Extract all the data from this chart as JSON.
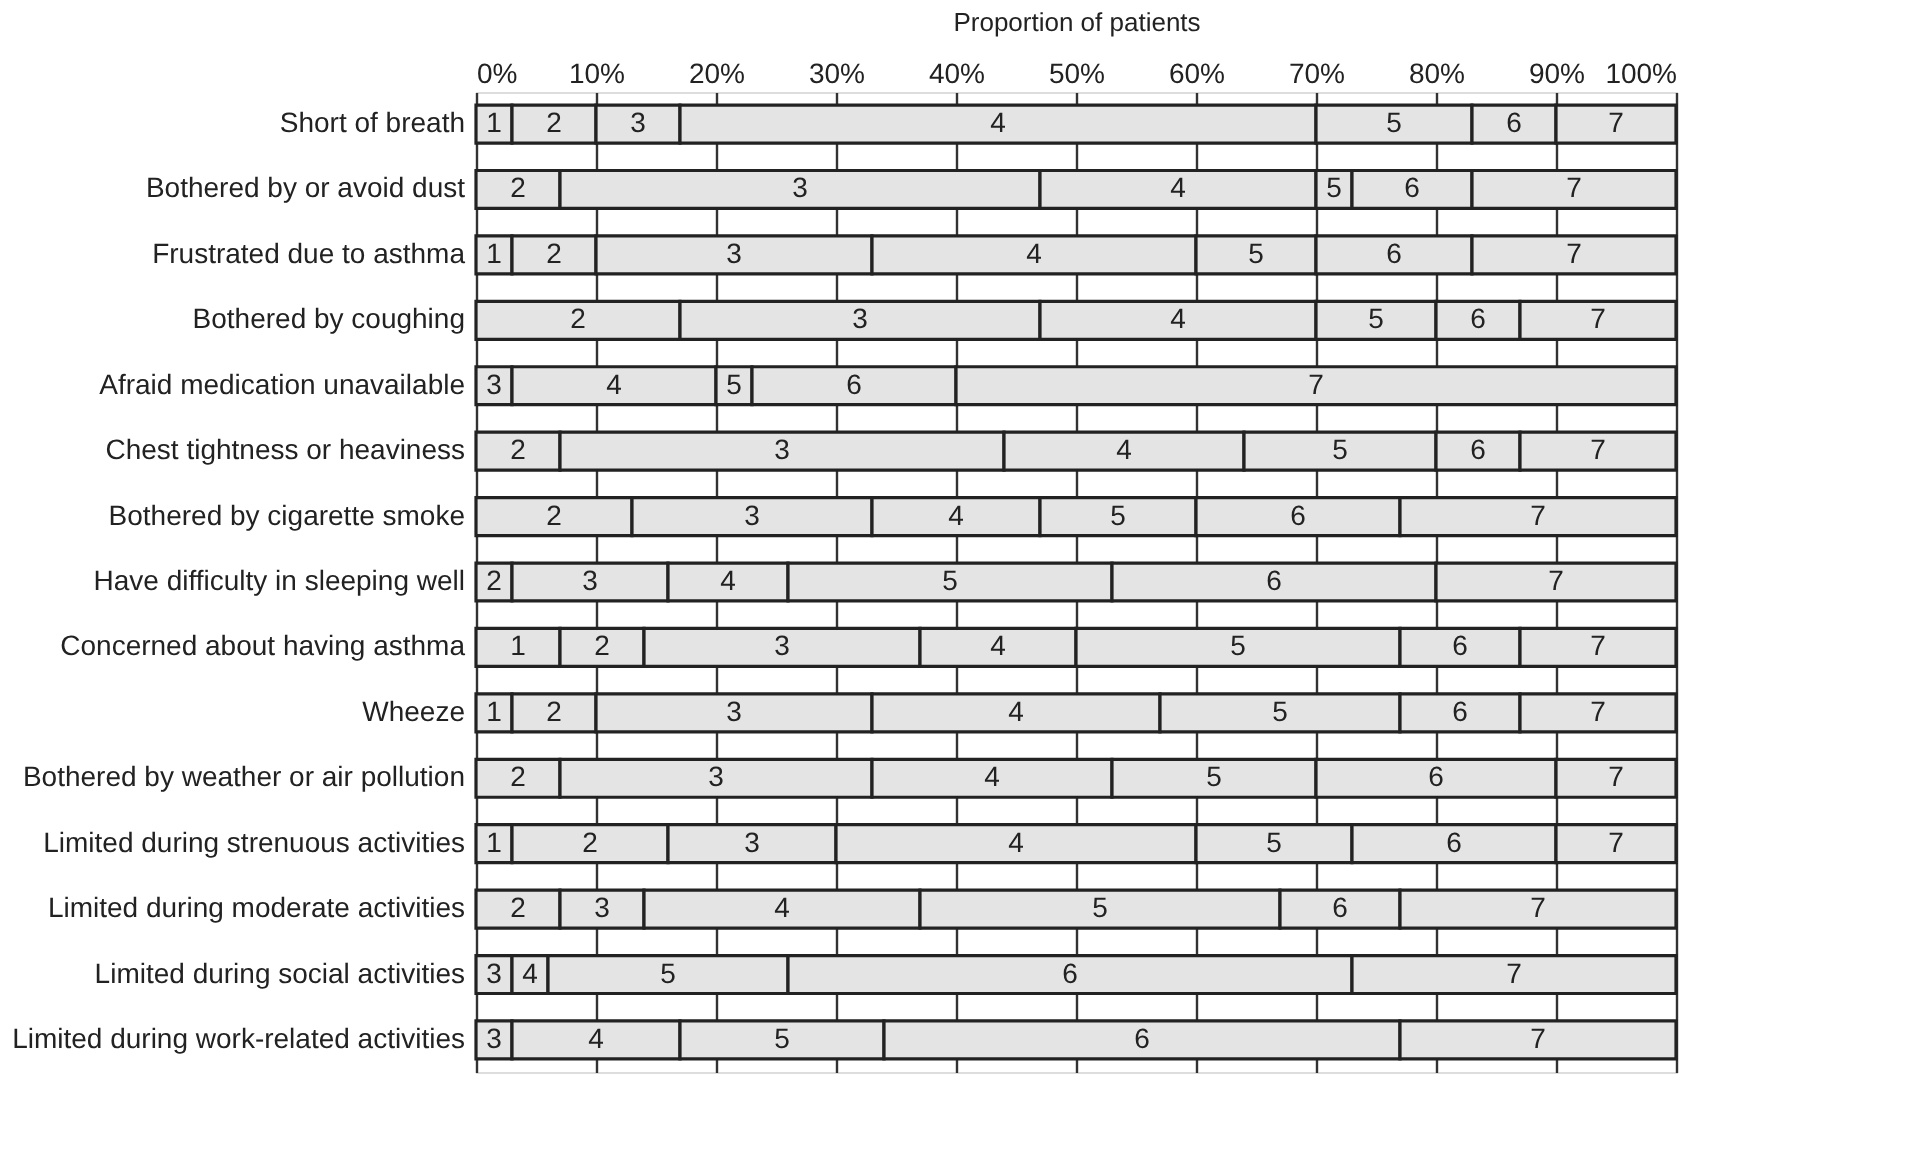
{
  "chart_data": {
    "type": "bar",
    "orientation": "horizontal",
    "stacked": true,
    "xlabel": "Proportion of patients",
    "categories": [
      "Short of breath",
      "Bothered by or avoid dust",
      "Frustrated due to asthma",
      "Bothered by coughing",
      "Afraid medication unavailable",
      "Chest tightness or heaviness",
      "Bothered by cigarette smoke",
      "Have difficulty in sleeping well",
      "Concerned about having asthma",
      "Wheeze",
      "Bothered by weather or air pollution",
      "Limited during strenuous activities",
      "Limited during moderate activities",
      "Limited during social activities",
      "Limited during work-related activities"
    ],
    "series": [
      {
        "name": "1",
        "color": "#e4e4e4",
        "values": [
          3,
          0,
          3,
          0,
          0,
          0,
          0,
          0,
          7,
          3,
          0,
          3,
          0,
          0,
          0
        ]
      },
      {
        "name": "2",
        "color": "#e4e4e4",
        "values": [
          7,
          7,
          7,
          17,
          0,
          7,
          13,
          3,
          7,
          7,
          7,
          13,
          7,
          0,
          0
        ]
      },
      {
        "name": "3",
        "color": "#e4e4e4",
        "values": [
          7,
          40,
          23,
          30,
          3,
          37,
          20,
          13,
          23,
          23,
          26,
          14,
          7,
          3,
          3
        ]
      },
      {
        "name": "4",
        "color": "#e4e4e4",
        "values": [
          53,
          23,
          27,
          23,
          17,
          20,
          14,
          10,
          13,
          24,
          20,
          30,
          23,
          3,
          14
        ]
      },
      {
        "name": "5",
        "color": "#e4e4e4",
        "values": [
          13,
          3,
          10,
          10,
          3,
          16,
          13,
          27,
          27,
          20,
          17,
          13,
          30,
          20,
          17
        ]
      },
      {
        "name": "6",
        "color": "#e4e4e4",
        "values": [
          7,
          10,
          13,
          7,
          17,
          7,
          17,
          27,
          10,
          10,
          20,
          17,
          10,
          47,
          43
        ]
      },
      {
        "name": "7",
        "color": "#e4e4e4",
        "values": [
          10,
          17,
          17,
          13,
          60,
          13,
          23,
          20,
          13,
          13,
          10,
          10,
          23,
          27,
          23
        ]
      }
    ],
    "xlim": [
      0,
      100
    ],
    "xticks": [
      {
        "value": 0,
        "label": "0%"
      },
      {
        "value": 10,
        "label": "10%"
      },
      {
        "value": 20,
        "label": "20%"
      },
      {
        "value": 30,
        "label": "30%"
      },
      {
        "value": 40,
        "label": "40%"
      },
      {
        "value": 50,
        "label": "50%"
      },
      {
        "value": 60,
        "label": "60%"
      },
      {
        "value": 70,
        "label": "70%"
      },
      {
        "value": 80,
        "label": "80%"
      },
      {
        "value": 90,
        "label": "90%"
      },
      {
        "value": 100,
        "label": "100%"
      }
    ],
    "grid": "x",
    "legend": false
  }
}
